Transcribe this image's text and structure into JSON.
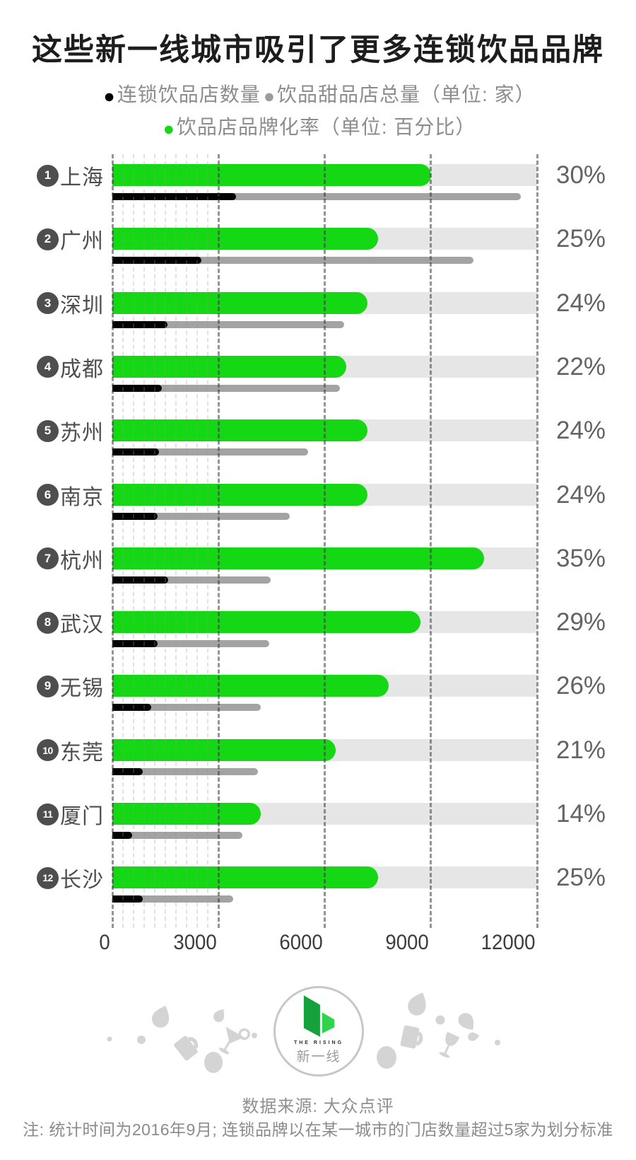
{
  "title": "这些新一线城市吸引了更多连锁饮品品牌",
  "legend": {
    "items": [
      {
        "label": "连锁饮品店数量",
        "color": "#000000"
      },
      {
        "label": "饮品甜品店总量（单位: 家）",
        "color": "#9b9b9b"
      },
      {
        "label": "饮品店品牌化率（单位: 百分比）",
        "color": "#14d814"
      }
    ]
  },
  "chart_data": {
    "type": "bar",
    "orientation": "horizontal",
    "categories": [
      "上海",
      "广州",
      "深圳",
      "成都",
      "苏州",
      "南京",
      "杭州",
      "武汉",
      "无锡",
      "东莞",
      "厦门",
      "长沙"
    ],
    "ranks": [
      1,
      2,
      3,
      4,
      5,
      6,
      7,
      8,
      9,
      10,
      11,
      12
    ],
    "series": [
      {
        "name": "连锁饮品店数量",
        "unit": "家",
        "color": "#030303",
        "values": [
          3500,
          2520,
          1560,
          1400,
          1310,
          1270,
          1570,
          1280,
          1090,
          860,
          550,
          850
        ]
      },
      {
        "name": "饮品甜品店总量",
        "unit": "家",
        "color": "#a3a3a3",
        "values": [
          11550,
          10200,
          6550,
          6430,
          5540,
          5020,
          4470,
          4430,
          4200,
          4120,
          3670,
          3410
        ]
      },
      {
        "name": "饮品店品牌化率",
        "unit": "百分比",
        "color": "#14d814",
        "values": [
          30,
          25,
          24,
          22,
          24,
          24,
          35,
          29,
          26,
          21,
          14,
          25
        ]
      }
    ],
    "count_axis": {
      "min": 0,
      "max": 12000,
      "ticks": [
        0,
        3000,
        6000,
        9000,
        12000
      ],
      "minor_step": 300,
      "minor_max": 3000
    },
    "rate_axis": {
      "min": 0,
      "max": 40
    },
    "grid": "dashed-vertical",
    "legend_position": "top"
  },
  "colors": {
    "rate_green": "#14d814",
    "rate_track": "#e6e6e6",
    "chain_black": "#030303",
    "total_gray": "#a3a3a3",
    "badge": "#4e4e4e",
    "logo_dark_green": "#17a13c",
    "logo_light_green": "#2fd44c",
    "decor_gray": "#d4d4d4"
  },
  "footer": {
    "logo_en": "THE RISING",
    "logo_zh": "新一线",
    "source": "数据来源: 大众点评",
    "note": "注: 统计时间为2016年9月; 连锁品牌以在某一城市的门店数量超过5家为划分标准"
  }
}
